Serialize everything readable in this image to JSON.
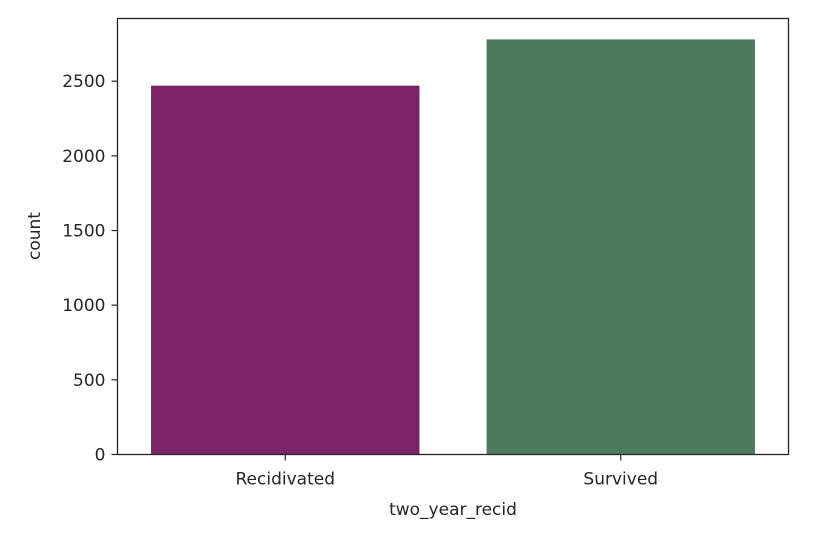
{
  "chart_data": {
    "type": "bar",
    "title": "",
    "xlabel": "two_year_recid",
    "ylabel": "count",
    "categories": [
      "Recidivated",
      "Survived"
    ],
    "values": [
      2470,
      2780
    ],
    "colors": [
      "#7b2369",
      "#4d7b5e"
    ],
    "ylim": [
      0,
      2920
    ],
    "yticks": [
      0,
      500,
      1000,
      1500,
      2000,
      2500
    ],
    "grid": false,
    "legend": "none"
  }
}
